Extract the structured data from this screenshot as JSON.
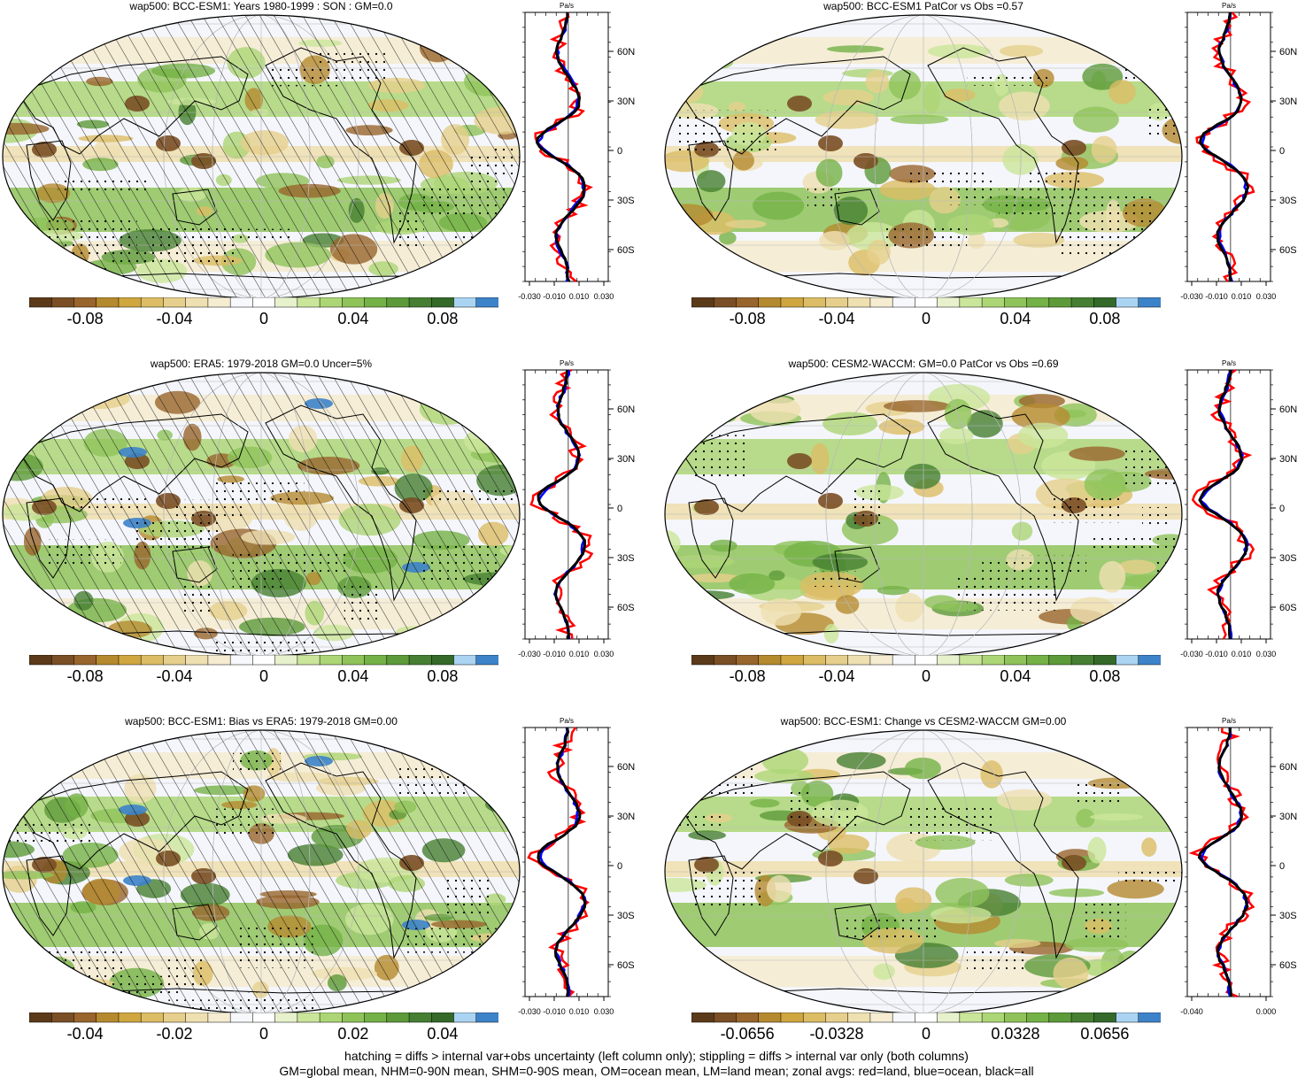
{
  "colors": {
    "colorbar": [
      "#5b3a1a",
      "#7a4f25",
      "#98652d",
      "#b58a2f",
      "#cfa63f",
      "#dcbd65",
      "#e6cf8c",
      "#efe0b1",
      "#f5ecd2",
      "#f7f8fb",
      "#ffffff",
      "#e7f2cd",
      "#cae69a",
      "#acd676",
      "#8fc35a",
      "#74b146",
      "#5c9a3a",
      "#467f32",
      "#34692a",
      "#aad4f2",
      "#3d83c9"
    ],
    "land": "#e6cf8c",
    "ocean": "#ffffff",
    "profile_land": "#ff0000",
    "profile_ocean": "#0000ff",
    "profile_all": "#000000"
  },
  "panels": [
    {
      "id": "p1",
      "title": "wap500: BCC-ESM1: Years 1980-1999 : SON : GM=0.0",
      "colorbar_labels": [
        "-0.08",
        "-0.04",
        "0",
        "0.04",
        "0.08"
      ],
      "profile": {
        "units": "Pa/s",
        "lat_labels": [
          "60N",
          "30N",
          "0",
          "30S",
          "60S"
        ],
        "x_labels": [
          "-0.030",
          "-0.010",
          "0.010",
          "0.030"
        ]
      }
    },
    {
      "id": "p2",
      "title": "wap500: BCC-ESM1 PatCor vs Obs =0.57",
      "colorbar_labels": [
        "-0.08",
        "-0.04",
        "0",
        "0.04",
        "0.08"
      ],
      "profile": {
        "units": "Pa/s",
        "lat_labels": [
          "60N",
          "30N",
          "0",
          "30S",
          "60S"
        ],
        "x_labels": [
          "-0.030",
          "-0.010",
          "0.010",
          "0.030"
        ]
      }
    },
    {
      "id": "p3",
      "title": "wap500: ERA5: 1979-2018 GM=0.0 Uncer=5%",
      "colorbar_labels": [
        "-0.08",
        "-0.04",
        "0",
        "0.04",
        "0.08"
      ],
      "profile": {
        "units": "Pa/s",
        "lat_labels": [
          "60N",
          "30N",
          "0",
          "30S",
          "60S"
        ],
        "x_labels": [
          "-0.030",
          "-0.010",
          "0.010",
          "0.030"
        ]
      }
    },
    {
      "id": "p4",
      "title": "wap500: CESM2-WACCM: GM=0.0 PatCor vs Obs =0.69",
      "colorbar_labels": [
        "-0.08",
        "-0.04",
        "0",
        "0.04",
        "0.08"
      ],
      "profile": {
        "units": "Pa/s",
        "lat_labels": [
          "60N",
          "30N",
          "0",
          "30S",
          "60S"
        ],
        "x_labels": [
          "-0.030",
          "-0.010",
          "0.010",
          "0.030"
        ]
      }
    },
    {
      "id": "p5",
      "title": "wap500: BCC-ESM1: Bias vs ERA5: 1979-2018  GM=0.00",
      "colorbar_labels": [
        "-0.04",
        "-0.02",
        "0",
        "0.02",
        "0.04"
      ],
      "profile": {
        "units": "Pa/s",
        "lat_labels": [
          "60N",
          "30N",
          "0",
          "30S",
          "60S"
        ],
        "x_labels": [
          "-0.030",
          "-0.010",
          "0.010",
          "0.030"
        ]
      }
    },
    {
      "id": "p6",
      "title": "wap500: BCC-ESM1: Change vs CESM2-WACCM GM=0.00",
      "colorbar_labels": [
        "-0.0656",
        "-0.0328",
        "0",
        "0.0328",
        "0.0656"
      ],
      "profile": {
        "units": "Pa/s",
        "lat_labels": [
          "60N",
          "30N",
          "0",
          "30S",
          "60S"
        ],
        "x_labels": [
          "-0.040",
          "0.000"
        ]
      }
    }
  ],
  "footer": {
    "line1": "hatching = diffs > internal var+obs uncertainty (left column only); stippling = diffs > internal var only (both columns)",
    "line2": "GM=global mean, NHM=0-90N mean, SHM=0-90S mean, OM=ocean mean, LM=land mean; zonal avgs: red=land, blue=ocean, black=all"
  }
}
